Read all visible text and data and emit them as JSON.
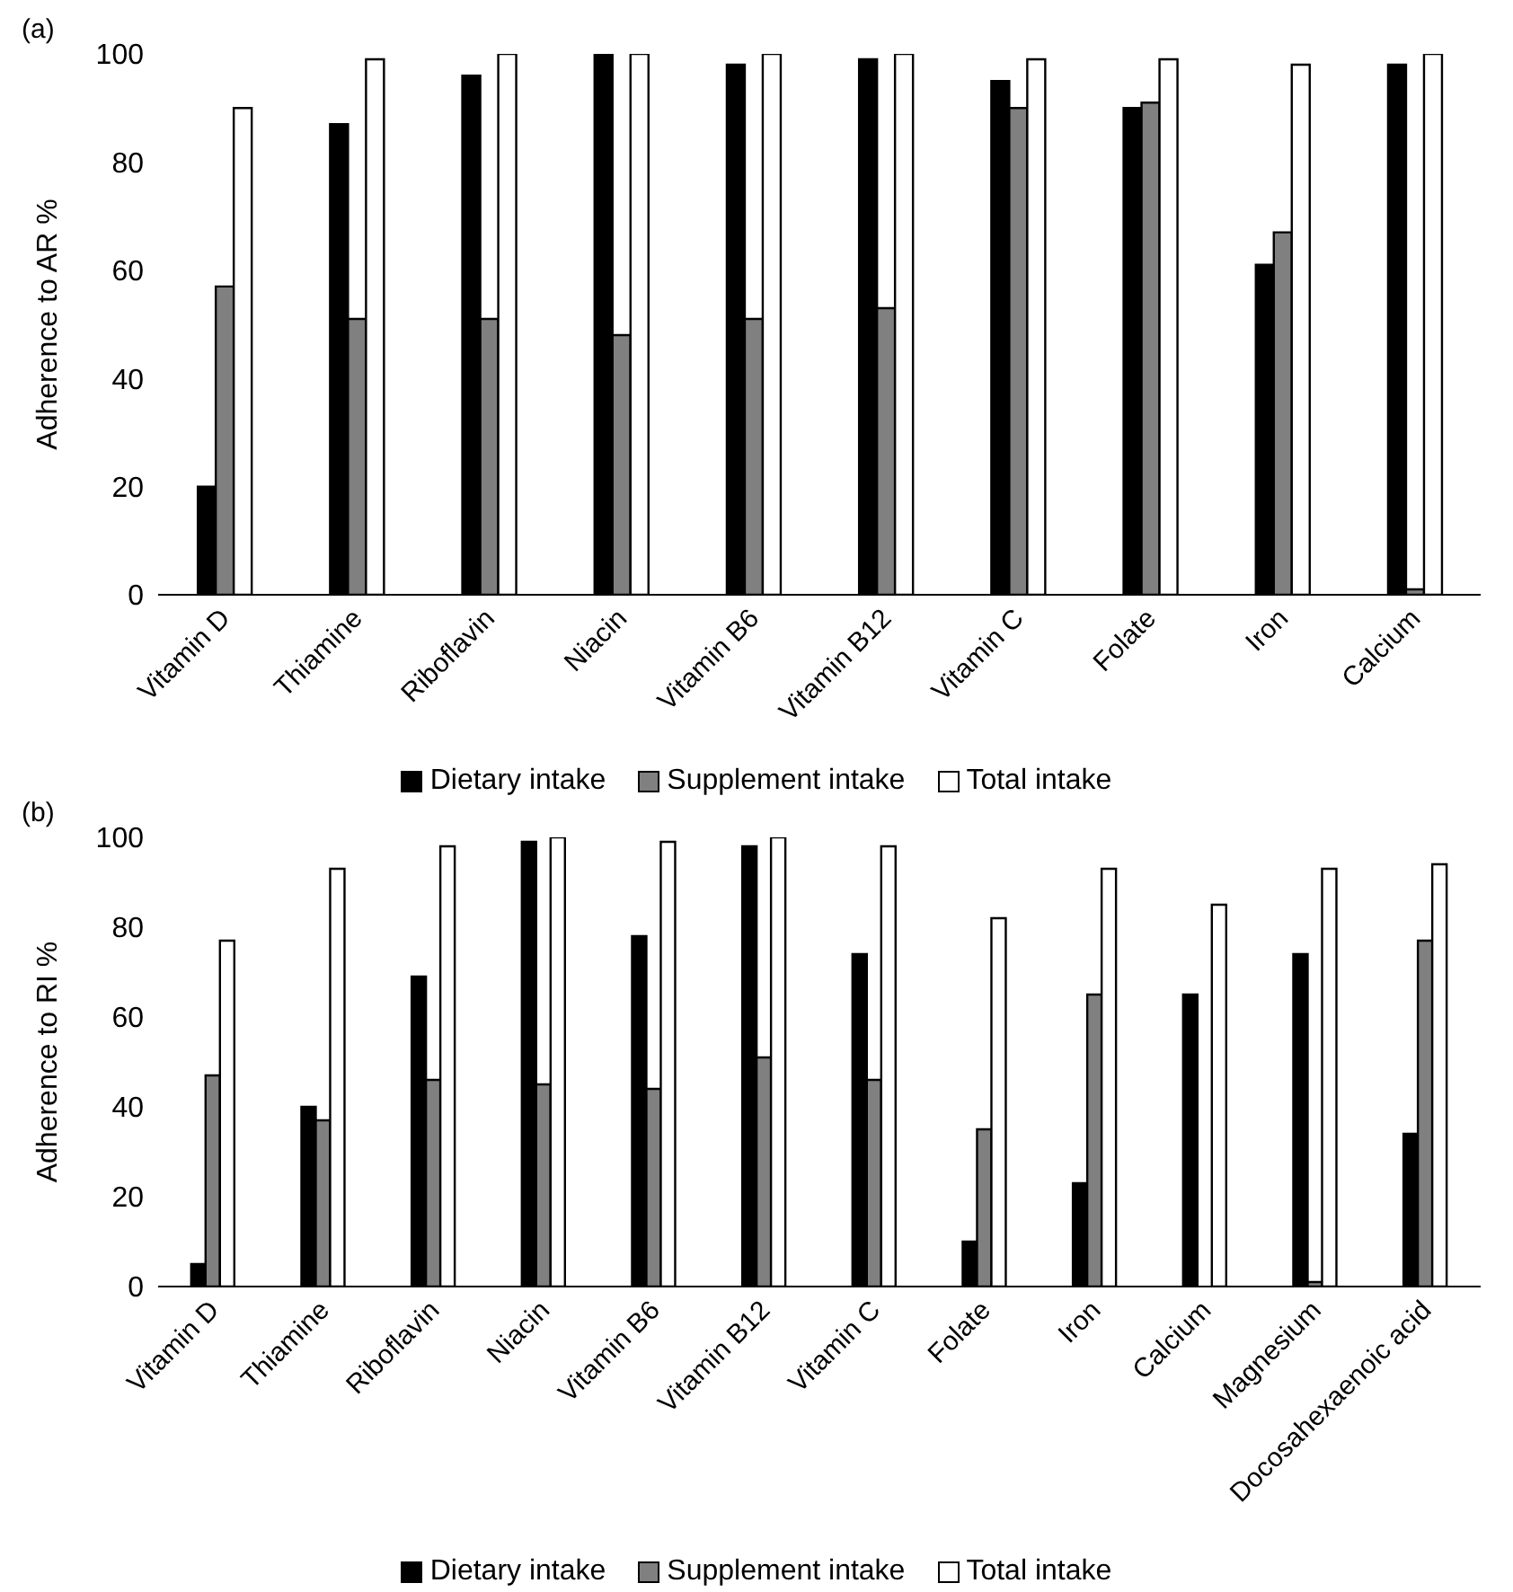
{
  "chart_data": [
    {
      "type": "bar",
      "title": "(a)",
      "ylabel": "Adherence to AR %",
      "categories": [
        "Vitamin D",
        "Thiamine",
        "Riboflavin",
        "Niacin",
        "Vitamin B6",
        "Vitamin B12",
        "Vitamin C",
        "Folate",
        "Iron",
        "Calcium"
      ],
      "series": [
        {
          "name": "Dietary intake",
          "color": "#000000",
          "values": [
            20,
            87,
            96,
            100,
            98,
            99,
            95,
            90,
            61,
            98
          ]
        },
        {
          "name": "Supplement intake",
          "color": "#808080",
          "values": [
            57,
            51,
            51,
            48,
            51,
            53,
            90,
            91,
            67,
            1
          ]
        },
        {
          "name": "Total intake",
          "color": "#ffffff",
          "values": [
            90,
            99,
            100,
            100,
            100,
            100,
            99,
            99,
            98,
            100
          ]
        }
      ],
      "ylim": [
        0,
        100
      ],
      "yticks": [
        0,
        20,
        40,
        60,
        80,
        100
      ],
      "grid": false,
      "legend": "bottom"
    },
    {
      "type": "bar",
      "title": "(b)",
      "ylabel": "Adherence to RI %",
      "categories": [
        "Vitamin D",
        "Thiamine",
        "Riboflavin",
        "Niacin",
        "Vitamin B6",
        "Vitamin B12",
        "Vitamin C",
        "Folate",
        "Iron",
        "Calcium",
        "Magnesium",
        "Docosahexaenoic acid"
      ],
      "series": [
        {
          "name": "Dietary intake",
          "color": "#000000",
          "values": [
            5,
            40,
            69,
            99,
            78,
            98,
            74,
            10,
            23,
            65,
            74,
            34
          ]
        },
        {
          "name": "Supplement intake",
          "color": "#808080",
          "values": [
            47,
            37,
            46,
            45,
            44,
            51,
            46,
            35,
            65,
            null,
            1,
            77
          ]
        },
        {
          "name": "Total intake",
          "color": "#ffffff",
          "values": [
            77,
            93,
            98,
            100,
            99,
            100,
            98,
            82,
            93,
            85,
            93,
            94
          ]
        }
      ],
      "ylim": [
        0,
        100
      ],
      "yticks": [
        0,
        20,
        40,
        60,
        80,
        100
      ],
      "grid": false,
      "legend": "bottom"
    }
  ]
}
